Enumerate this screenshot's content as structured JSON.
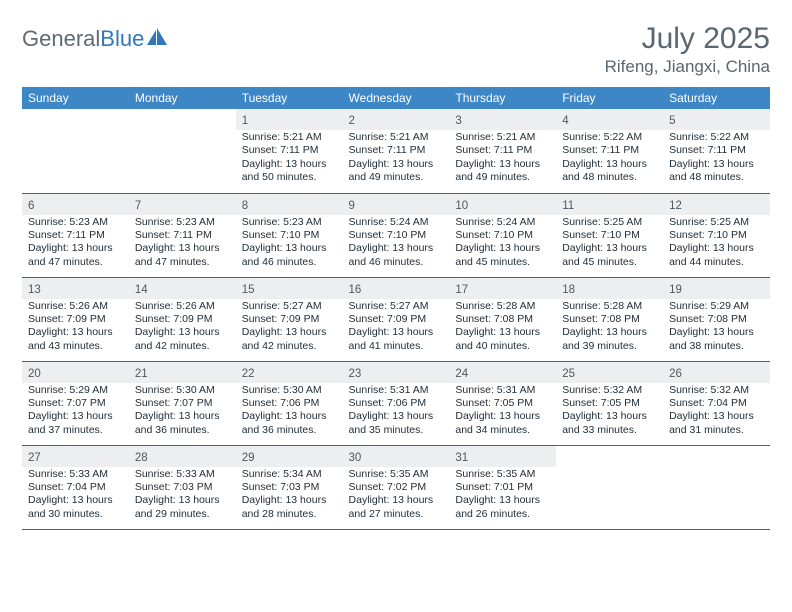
{
  "logo": {
    "word1": "General",
    "word2": "Blue"
  },
  "title": "July 2025",
  "location": "Rifeng, Jiangxi, China",
  "colors": {
    "header_bg": "#3d87c7",
    "row_divider": "#34689b",
    "daynum_bg": "#eceef0",
    "text_muted": "#5a6670",
    "logo_blue": "#2f78bb",
    "logo_gray": "#5f6a72"
  },
  "weekdays": [
    "Sunday",
    "Monday",
    "Tuesday",
    "Wednesday",
    "Thursday",
    "Friday",
    "Saturday"
  ],
  "weeks": [
    [
      {
        "empty": true
      },
      {
        "empty": true
      },
      {
        "day": "1",
        "sunrise": "5:21 AM",
        "sunset": "7:11 PM",
        "daylight": "13 hours and 50 minutes."
      },
      {
        "day": "2",
        "sunrise": "5:21 AM",
        "sunset": "7:11 PM",
        "daylight": "13 hours and 49 minutes."
      },
      {
        "day": "3",
        "sunrise": "5:21 AM",
        "sunset": "7:11 PM",
        "daylight": "13 hours and 49 minutes."
      },
      {
        "day": "4",
        "sunrise": "5:22 AM",
        "sunset": "7:11 PM",
        "daylight": "13 hours and 48 minutes."
      },
      {
        "day": "5",
        "sunrise": "5:22 AM",
        "sunset": "7:11 PM",
        "daylight": "13 hours and 48 minutes."
      }
    ],
    [
      {
        "day": "6",
        "sunrise": "5:23 AM",
        "sunset": "7:11 PM",
        "daylight": "13 hours and 47 minutes."
      },
      {
        "day": "7",
        "sunrise": "5:23 AM",
        "sunset": "7:11 PM",
        "daylight": "13 hours and 47 minutes."
      },
      {
        "day": "8",
        "sunrise": "5:23 AM",
        "sunset": "7:10 PM",
        "daylight": "13 hours and 46 minutes."
      },
      {
        "day": "9",
        "sunrise": "5:24 AM",
        "sunset": "7:10 PM",
        "daylight": "13 hours and 46 minutes."
      },
      {
        "day": "10",
        "sunrise": "5:24 AM",
        "sunset": "7:10 PM",
        "daylight": "13 hours and 45 minutes."
      },
      {
        "day": "11",
        "sunrise": "5:25 AM",
        "sunset": "7:10 PM",
        "daylight": "13 hours and 45 minutes."
      },
      {
        "day": "12",
        "sunrise": "5:25 AM",
        "sunset": "7:10 PM",
        "daylight": "13 hours and 44 minutes."
      }
    ],
    [
      {
        "day": "13",
        "sunrise": "5:26 AM",
        "sunset": "7:09 PM",
        "daylight": "13 hours and 43 minutes."
      },
      {
        "day": "14",
        "sunrise": "5:26 AM",
        "sunset": "7:09 PM",
        "daylight": "13 hours and 42 minutes."
      },
      {
        "day": "15",
        "sunrise": "5:27 AM",
        "sunset": "7:09 PM",
        "daylight": "13 hours and 42 minutes."
      },
      {
        "day": "16",
        "sunrise": "5:27 AM",
        "sunset": "7:09 PM",
        "daylight": "13 hours and 41 minutes."
      },
      {
        "day": "17",
        "sunrise": "5:28 AM",
        "sunset": "7:08 PM",
        "daylight": "13 hours and 40 minutes."
      },
      {
        "day": "18",
        "sunrise": "5:28 AM",
        "sunset": "7:08 PM",
        "daylight": "13 hours and 39 minutes."
      },
      {
        "day": "19",
        "sunrise": "5:29 AM",
        "sunset": "7:08 PM",
        "daylight": "13 hours and 38 minutes."
      }
    ],
    [
      {
        "day": "20",
        "sunrise": "5:29 AM",
        "sunset": "7:07 PM",
        "daylight": "13 hours and 37 minutes."
      },
      {
        "day": "21",
        "sunrise": "5:30 AM",
        "sunset": "7:07 PM",
        "daylight": "13 hours and 36 minutes."
      },
      {
        "day": "22",
        "sunrise": "5:30 AM",
        "sunset": "7:06 PM",
        "daylight": "13 hours and 36 minutes."
      },
      {
        "day": "23",
        "sunrise": "5:31 AM",
        "sunset": "7:06 PM",
        "daylight": "13 hours and 35 minutes."
      },
      {
        "day": "24",
        "sunrise": "5:31 AM",
        "sunset": "7:05 PM",
        "daylight": "13 hours and 34 minutes."
      },
      {
        "day": "25",
        "sunrise": "5:32 AM",
        "sunset": "7:05 PM",
        "daylight": "13 hours and 33 minutes."
      },
      {
        "day": "26",
        "sunrise": "5:32 AM",
        "sunset": "7:04 PM",
        "daylight": "13 hours and 31 minutes."
      }
    ],
    [
      {
        "day": "27",
        "sunrise": "5:33 AM",
        "sunset": "7:04 PM",
        "daylight": "13 hours and 30 minutes."
      },
      {
        "day": "28",
        "sunrise": "5:33 AM",
        "sunset": "7:03 PM",
        "daylight": "13 hours and 29 minutes."
      },
      {
        "day": "29",
        "sunrise": "5:34 AM",
        "sunset": "7:03 PM",
        "daylight": "13 hours and 28 minutes."
      },
      {
        "day": "30",
        "sunrise": "5:35 AM",
        "sunset": "7:02 PM",
        "daylight": "13 hours and 27 minutes."
      },
      {
        "day": "31",
        "sunrise": "5:35 AM",
        "sunset": "7:01 PM",
        "daylight": "13 hours and 26 minutes."
      },
      {
        "empty": true
      },
      {
        "empty": true
      }
    ]
  ],
  "labels": {
    "sunrise_prefix": "Sunrise: ",
    "sunset_prefix": "Sunset: ",
    "daylight_prefix": "Daylight: "
  }
}
